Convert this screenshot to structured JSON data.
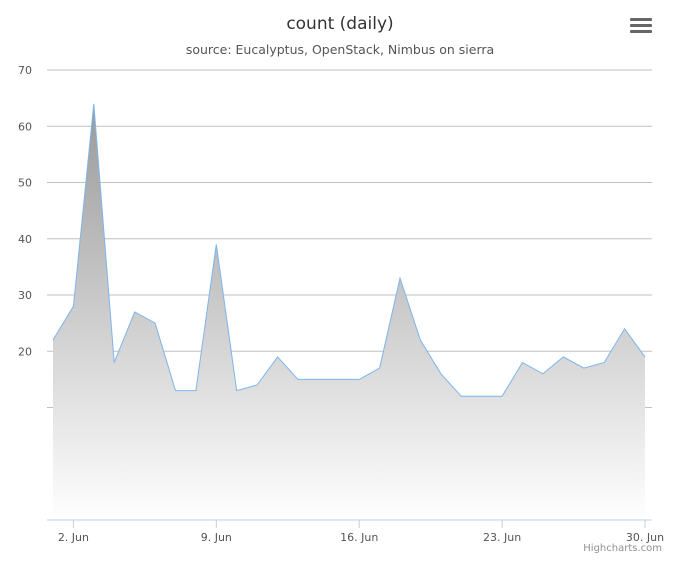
{
  "chart_data": {
    "type": "area",
    "title": "count (daily)",
    "subtitle": "source: Eucalyptus, OpenStack, Nimbus on sierra",
    "xlabel": "",
    "ylabel": "",
    "x": [
      "2015-06-01",
      "2015-06-02",
      "2015-06-03",
      "2015-06-04",
      "2015-06-05",
      "2015-06-06",
      "2015-06-07",
      "2015-06-08",
      "2015-06-09",
      "2015-06-10",
      "2015-06-11",
      "2015-06-12",
      "2015-06-13",
      "2015-06-14",
      "2015-06-15",
      "2015-06-16",
      "2015-06-17",
      "2015-06-18",
      "2015-06-19",
      "2015-06-20",
      "2015-06-21",
      "2015-06-22",
      "2015-06-23",
      "2015-06-24",
      "2015-06-25",
      "2015-06-26",
      "2015-06-27",
      "2015-06-28",
      "2015-06-29",
      "2015-06-30"
    ],
    "values": [
      22,
      28,
      64,
      18,
      27,
      25,
      13,
      13,
      39,
      13,
      14,
      19,
      15,
      15,
      15,
      15,
      17,
      33,
      22,
      16,
      12,
      12,
      12,
      18,
      16,
      19,
      17,
      18,
      24,
      19
    ],
    "ylim": [
      -10,
      70
    ],
    "yticks": [
      20,
      30,
      40,
      50,
      60,
      70
    ],
    "xtick_dates": [
      "2015-06-02",
      "2015-06-09",
      "2015-06-16",
      "2015-06-23",
      "2015-06-30"
    ],
    "xtick_labels": [
      "2. Jun",
      "9. Jun",
      "16. Jun",
      "23. Jun",
      "30. Jun"
    ],
    "grid": true,
    "legend": "none",
    "colors": {
      "line": "#7cb5ec",
      "fill_top": "#999999",
      "fill_bottom": "#ffffff"
    }
  },
  "menu": {
    "icon": "hamburger-menu-icon"
  },
  "credits": "Highcharts.com"
}
